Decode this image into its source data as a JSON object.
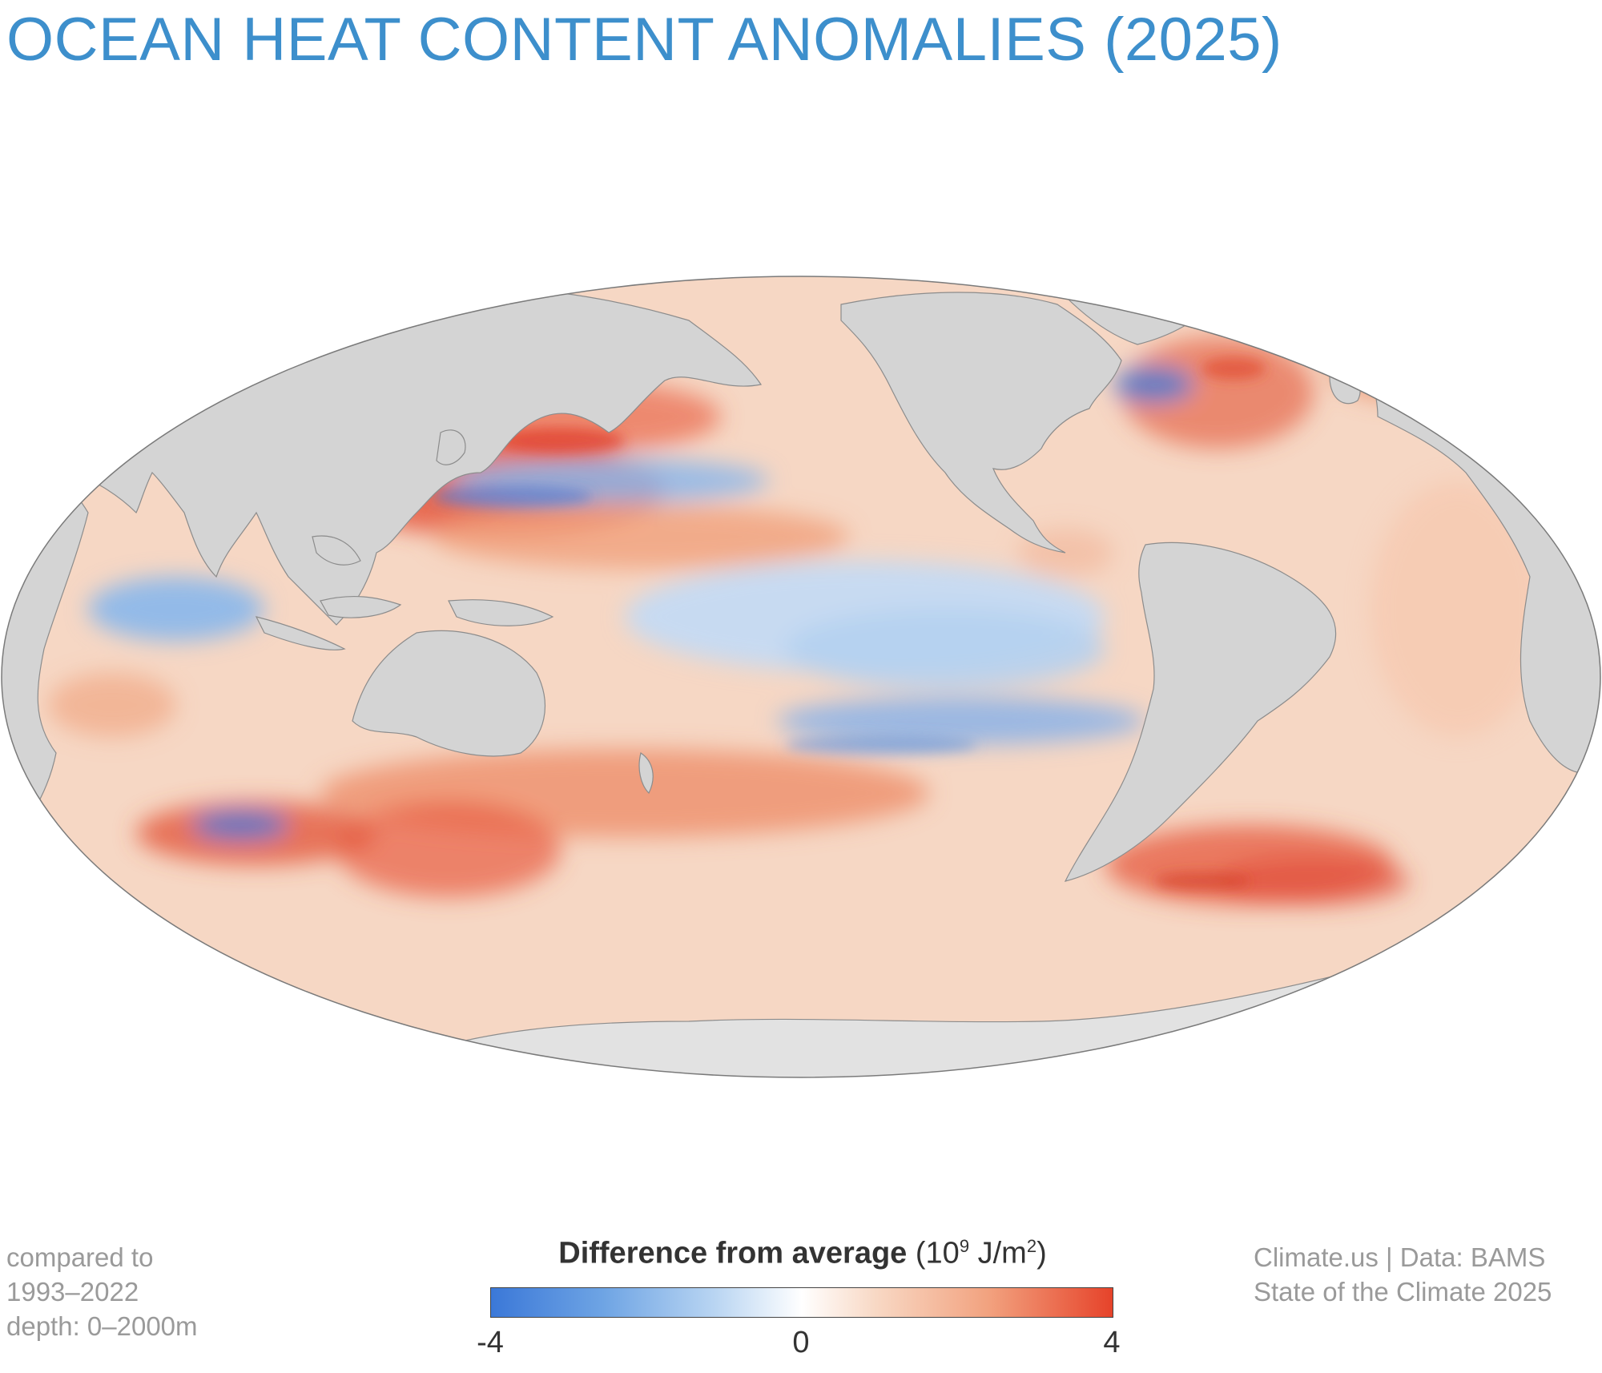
{
  "title": "OCEAN HEAT CONTENT ANOMALIES (2025)",
  "notes_left": [
    "compared to",
    "1993–2022",
    "depth: 0–2000m"
  ],
  "notes_right": [
    "Climate.us | Data: BAMS",
    "State of the Climate 2025"
  ],
  "legend": {
    "label_bold": "Difference from average",
    "unit_open": " (10",
    "unit_exp": "9",
    "unit_mid": " J/m",
    "unit_exp2": "2",
    "unit_close": ")",
    "ticks": [
      "-4",
      "0",
      "4"
    ],
    "min": -4,
    "max": 4
  },
  "colors": {
    "title": "#3d8fcc",
    "land": "#d4d4d4",
    "ice": "#e2e2e2",
    "cold": "#3b78d8",
    "neutral": "#ffffff",
    "warm": "#e6432a"
  },
  "projection": "mollweide"
}
